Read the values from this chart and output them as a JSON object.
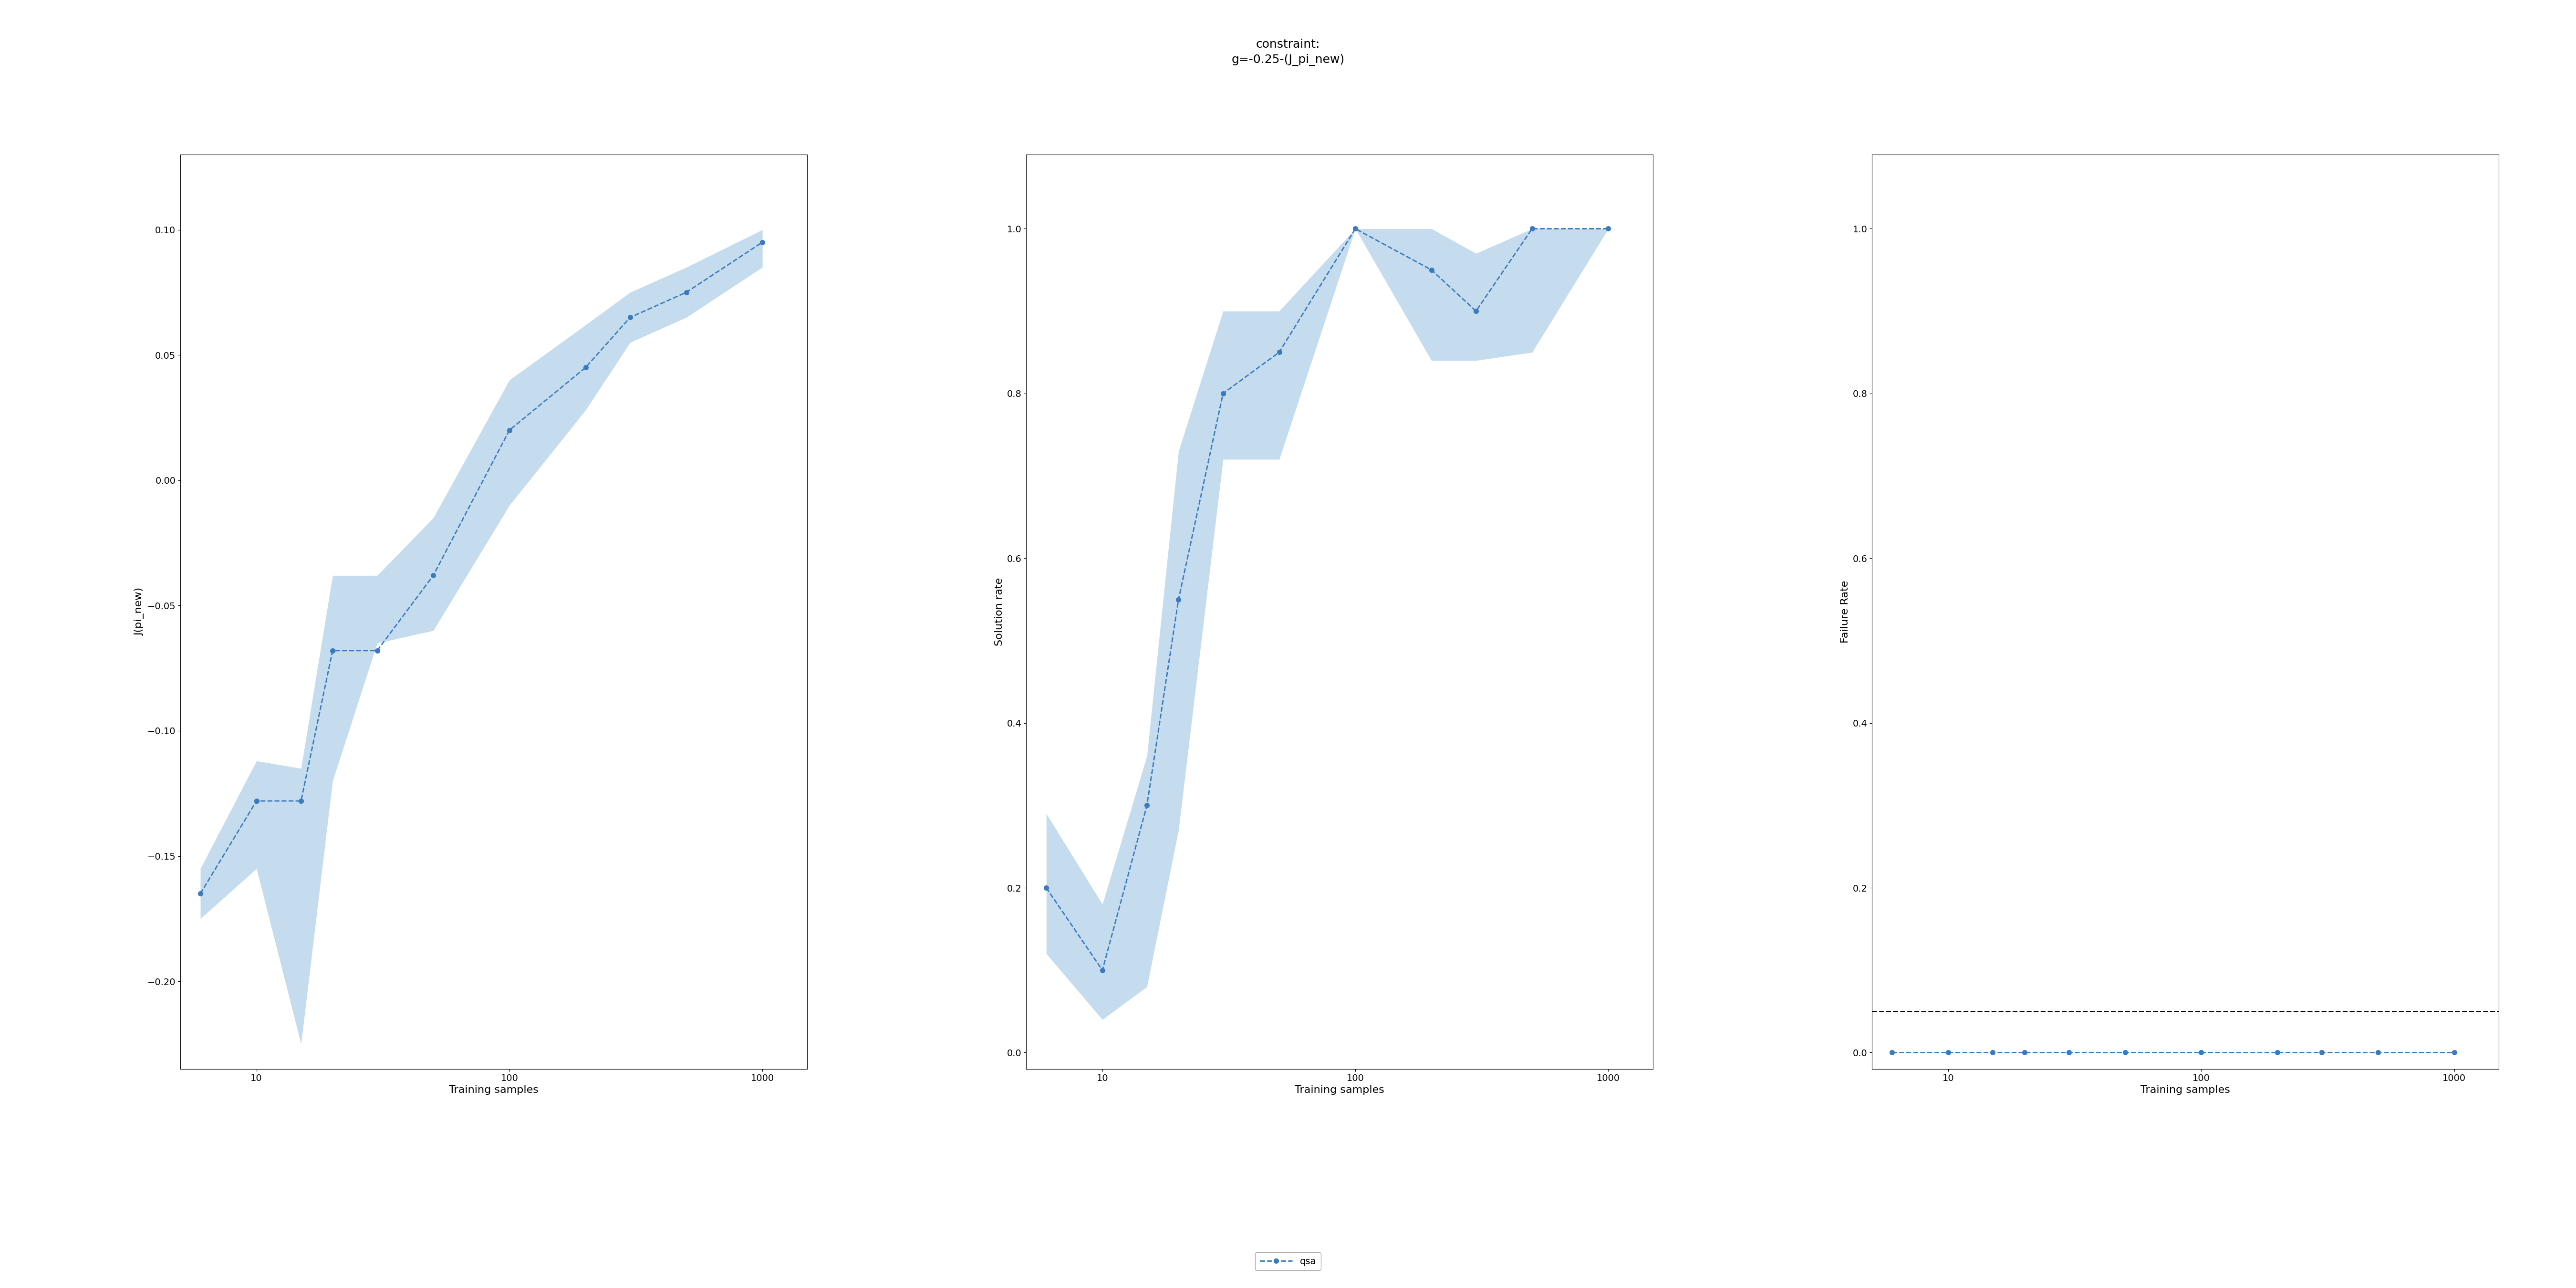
{
  "title_line1": "constraint:",
  "title_line2": "g=-0.25-(J_pi_new)",
  "x_values": [
    6,
    10,
    15,
    20,
    30,
    50,
    100,
    200,
    300,
    500,
    1000
  ],
  "plot1": {
    "ylabel": "J(pi_new)",
    "xlabel": "Training samples",
    "mean": [
      -0.165,
      -0.128,
      -0.128,
      -0.068,
      -0.068,
      -0.038,
      0.02,
      0.045,
      0.065,
      0.075,
      0.095
    ],
    "lower": [
      -0.175,
      -0.155,
      -0.225,
      -0.12,
      -0.065,
      -0.06,
      -0.01,
      0.028,
      0.055,
      0.065,
      0.085
    ],
    "upper": [
      -0.155,
      -0.112,
      -0.115,
      -0.038,
      -0.038,
      -0.015,
      0.04,
      0.062,
      0.075,
      0.085,
      0.1
    ],
    "ylim": [
      -0.235,
      0.13
    ]
  },
  "plot2": {
    "ylabel": "Solution rate",
    "xlabel": "Training samples",
    "mean": [
      0.2,
      0.1,
      0.3,
      0.55,
      0.8,
      0.85,
      1.0,
      0.95,
      0.9,
      1.0,
      1.0
    ],
    "lower": [
      0.12,
      0.04,
      0.08,
      0.27,
      0.72,
      0.72,
      1.0,
      0.84,
      0.84,
      0.85,
      1.0
    ],
    "upper": [
      0.29,
      0.18,
      0.36,
      0.73,
      0.9,
      0.9,
      1.0,
      1.0,
      0.97,
      1.0,
      1.0
    ],
    "ylim": [
      -0.02,
      1.09
    ]
  },
  "plot3": {
    "ylabel": "Failure Rate",
    "xlabel": "Training samples",
    "mean": [
      0.0,
      0.0,
      0.0,
      0.0,
      0.0,
      0.0,
      0.0,
      0.0,
      0.0,
      0.0,
      0.0
    ],
    "lower": [
      0.0,
      0.0,
      0.0,
      0.0,
      0.0,
      0.0,
      0.0,
      0.0,
      0.0,
      0.0,
      0.0
    ],
    "upper": [
      0.0,
      0.0,
      0.0,
      0.0,
      0.0,
      0.0,
      0.0,
      0.0,
      0.0,
      0.0,
      0.0
    ],
    "hline_y": 0.05,
    "ylim": [
      -0.02,
      1.09
    ]
  },
  "line_color": "#3a7abf",
  "fill_color": "#6fa8d6",
  "fill_alpha": 0.4,
  "legend_label": "qsa",
  "line_width": 2.0,
  "marker": "o",
  "marker_size": 7,
  "title_fontsize": 18,
  "label_fontsize": 16,
  "tick_fontsize": 14,
  "legend_fontsize": 14,
  "hline_linewidth": 2.0,
  "dpi": 100
}
